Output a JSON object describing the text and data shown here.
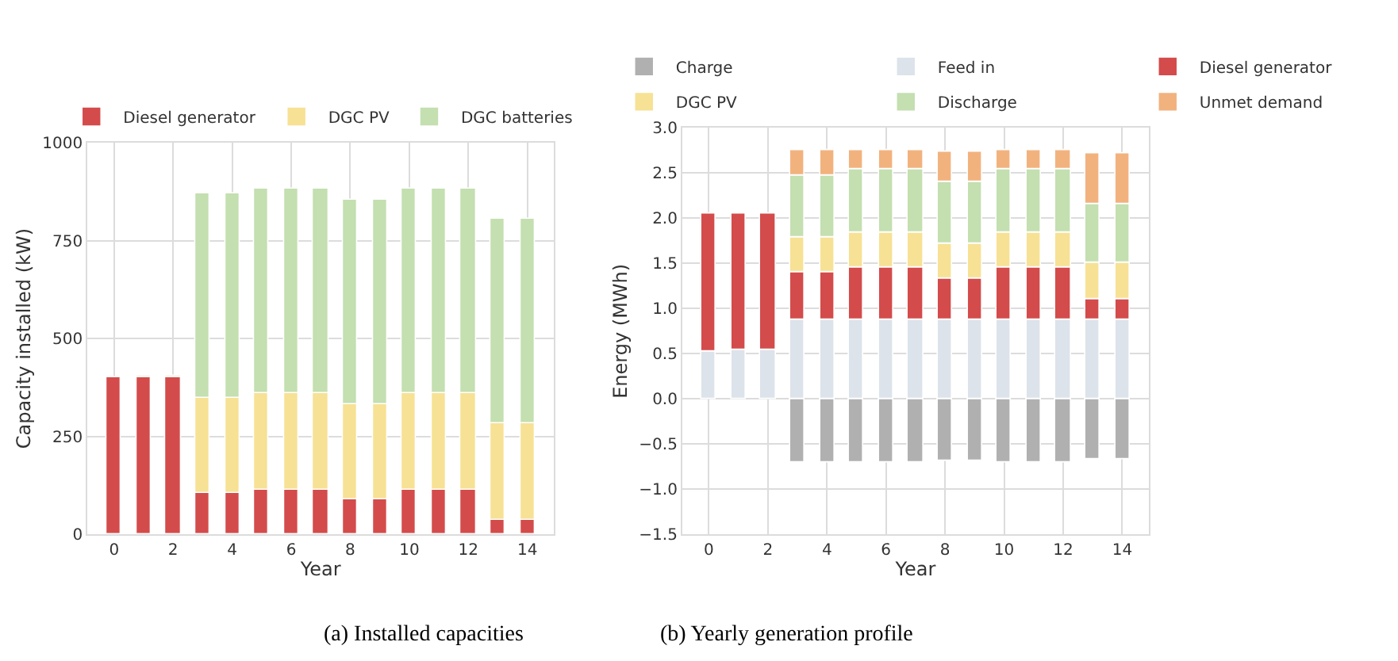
{
  "chart_data": [
    {
      "type": "bar",
      "stacked": true,
      "xlabel": "Year",
      "ylabel": "Capacity installed (kW)",
      "x": [
        0,
        1,
        2,
        3,
        4,
        5,
        6,
        7,
        8,
        9,
        10,
        11,
        12,
        13,
        14
      ],
      "xlim": [
        -0.9,
        14.9
      ],
      "xticks": [
        0,
        2,
        4,
        6,
        8,
        10,
        12,
        14
      ],
      "ylim": [
        0,
        1000
      ],
      "yticks": [
        0,
        250,
        500,
        750,
        1000
      ],
      "grid": true,
      "legend": "top",
      "annotations": [
        "(a) Installed capacities"
      ],
      "series": [
        {
          "name": "Diesel generator",
          "color": "#d44b4b",
          "values": [
            400,
            400,
            400,
            105,
            105,
            115,
            115,
            115,
            88,
            88,
            115,
            115,
            115,
            38,
            38
          ]
        },
        {
          "name": "DGC PV",
          "color": "#f7e194",
          "values": [
            null,
            null,
            null,
            245,
            245,
            245,
            245,
            245,
            245,
            245,
            245,
            245,
            245,
            247,
            247
          ]
        },
        {
          "name": "DGC batteries",
          "color": "#c4dfb0",
          "values": [
            null,
            5,
            5,
            520,
            520,
            522,
            522,
            522,
            522,
            522,
            522,
            522,
            522,
            520,
            520
          ]
        }
      ]
    },
    {
      "type": "bar",
      "stacked": true,
      "xlabel": "Year",
      "ylabel": "Energy (MWh)",
      "x": [
        0,
        1,
        2,
        3,
        4,
        5,
        6,
        7,
        8,
        9,
        10,
        11,
        12,
        13,
        14
      ],
      "xlim": [
        -0.9,
        14.9
      ],
      "xticks": [
        0,
        2,
        4,
        6,
        8,
        10,
        12,
        14
      ],
      "ylim": [
        -1.5,
        3.0
      ],
      "yticks": [
        {
          "value": -1.5,
          "label": "−1.5"
        },
        {
          "value": -1.0,
          "label": "−1.0"
        },
        {
          "value": -0.5,
          "label": "−0.5"
        },
        {
          "value": 0,
          "label": "0.0"
        },
        {
          "value": 0.5,
          "label": "0.5"
        },
        {
          "value": 1.0,
          "label": "1.0"
        },
        {
          "value": 1.5,
          "label": "1.5"
        },
        {
          "value": 2.0,
          "label": "2.0"
        },
        {
          "value": 2.5,
          "label": "2.5"
        },
        {
          "value": 3.0,
          "label": "3.0"
        }
      ],
      "grid": true,
      "legend": "top",
      "annotations": [
        "(b) Yearly generation profile"
      ],
      "series": [
        {
          "name": "Charge",
          "color": "#b0b0b0",
          "values": [
            null,
            null,
            null,
            -0.7,
            -0.7,
            -0.71,
            -0.71,
            -0.71,
            -0.69,
            -0.69,
            -0.71,
            -0.71,
            -0.71,
            -0.67,
            -0.67
          ]
        },
        {
          "name": "Feed in",
          "color": "#dce3ea",
          "values": [
            0.53,
            0.55,
            0.55,
            0.87,
            0.87,
            0.87,
            0.87,
            0.87,
            0.87,
            0.87,
            0.87,
            0.87,
            0.87,
            0.87,
            0.87
          ]
        },
        {
          "name": "Diesel generator",
          "color": "#d44b4b",
          "values": [
            1.52,
            1.5,
            1.5,
            0.54,
            0.54,
            0.59,
            0.59,
            0.59,
            0.47,
            0.47,
            0.59,
            0.59,
            0.59,
            0.24,
            0.24
          ]
        },
        {
          "name": "DGC PV",
          "color": "#f7e194",
          "values": [
            null,
            null,
            null,
            0.38,
            0.38,
            0.38,
            0.38,
            0.38,
            0.38,
            0.38,
            0.38,
            0.38,
            0.38,
            0.39,
            0.39
          ]
        },
        {
          "name": "Discharge",
          "color": "#c4dfb0",
          "values": [
            null,
            null,
            null,
            0.69,
            0.69,
            0.7,
            0.7,
            0.7,
            0.68,
            0.68,
            0.7,
            0.7,
            0.7,
            0.65,
            0.65
          ]
        },
        {
          "name": "Unmet demand",
          "color": "#f2b27e",
          "values": [
            null,
            null,
            null,
            0.27,
            0.27,
            0.21,
            0.21,
            0.21,
            0.34,
            0.34,
            0.21,
            0.21,
            0.21,
            0.57,
            0.57
          ]
        }
      ]
    }
  ]
}
